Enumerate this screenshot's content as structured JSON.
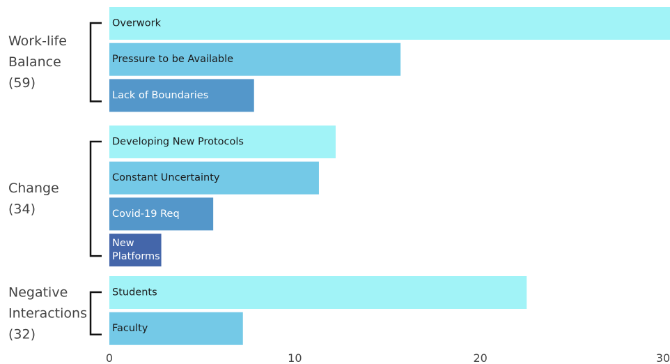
{
  "chart_data": {
    "type": "bar",
    "orientation": "horizontal",
    "title": "",
    "xlabel": "",
    "ylabel": "",
    "xlim": [
      0,
      30
    ],
    "xticks": [
      0,
      10,
      20,
      30
    ],
    "grid": false,
    "legend": "none",
    "groups": [
      {
        "label_lines": [
          "Work-life",
          "Balance",
          "(59)"
        ],
        "bars": [
          {
            "label": "Overwork",
            "value": 30.5,
            "color": "#a1f3f7",
            "text_color": "#1a1a1a"
          },
          {
            "label": "Pressure to be Available",
            "value": 15.7,
            "color": "#74c9e7",
            "text_color": "#1a1a1a"
          },
          {
            "label": "Lack of Boundaries",
            "value": 7.8,
            "color": "#5497ca",
            "text_color": "#ffffff"
          }
        ]
      },
      {
        "label_lines": [
          "Change",
          "(34)"
        ],
        "bars": [
          {
            "label": "Developing New Protocols",
            "value": 12.2,
            "color": "#a1f3f7",
            "text_color": "#1a1a1a"
          },
          {
            "label": "Constant Uncertainty",
            "value": 11.3,
            "color": "#74c9e7",
            "text_color": "#1a1a1a"
          },
          {
            "label": "Covid-19 Req",
            "value": 5.6,
            "color": "#5497ca",
            "text_color": "#ffffff"
          },
          {
            "label": "New Platforms",
            "label_lines": [
              "New",
              "Platforms"
            ],
            "value": 2.8,
            "color": "#4466aa",
            "text_color": "#ffffff"
          }
        ]
      },
      {
        "label_lines": [
          "Negative",
          "Interactions",
          "(32)"
        ],
        "bars": [
          {
            "label": "Students",
            "value": 22.5,
            "color": "#a1f3f7",
            "text_color": "#1a1a1a"
          },
          {
            "label": "Faculty",
            "value": 7.2,
            "color": "#74c9e7",
            "text_color": "#1a1a1a"
          }
        ]
      }
    ]
  }
}
